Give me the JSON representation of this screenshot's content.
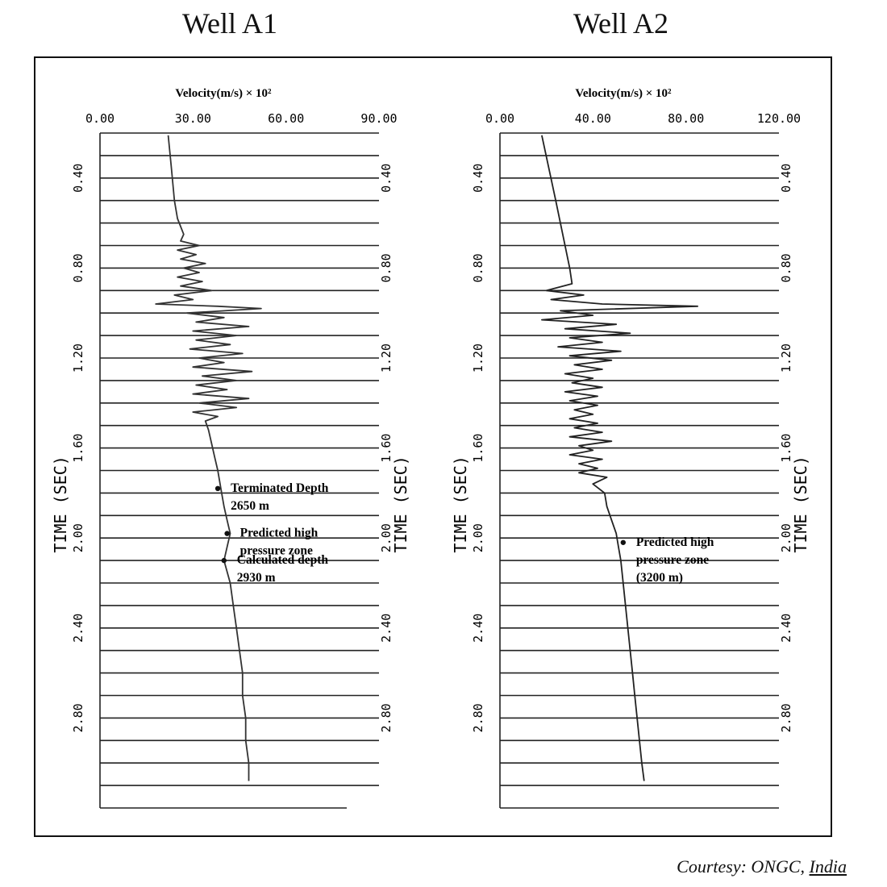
{
  "page": {
    "titles": [
      "Well A1",
      "Well A2"
    ],
    "courtesy_prefix": "Courtesy: ONGC, ",
    "courtesy_country": "India"
  },
  "chart_data": [
    {
      "type": "line",
      "panel": "Well A1",
      "title": "Well A1",
      "xlabel": "Velocity(m/s)  × 10²",
      "ylabel": "TIME (SEC)",
      "xlim": [
        0,
        90
      ],
      "ylim": [
        0.2,
        3.2
      ],
      "x_tick_labels": [
        "0.00",
        "30.00",
        "60.00",
        "90.00"
      ],
      "x_ticks": [
        0,
        30,
        60,
        90
      ],
      "y_tick_labels": [
        "0.40",
        "0.80",
        "1.20",
        "1.60",
        "2.00",
        "2.40",
        "2.80"
      ],
      "y_ticks": [
        0.4,
        0.8,
        1.2,
        1.6,
        2.0,
        2.4,
        2.8
      ],
      "gridlines_y": true,
      "series": [
        {
          "color": "#333333",
          "points": [
            [
              22,
              0.21
            ],
            [
              23,
              0.35
            ],
            [
              24,
              0.5
            ],
            [
              25,
              0.58
            ],
            [
              27,
              0.65
            ],
            [
              26,
              0.68
            ],
            [
              32,
              0.7
            ],
            [
              25,
              0.72
            ],
            [
              31,
              0.74
            ],
            [
              26,
              0.76
            ],
            [
              34,
              0.78
            ],
            [
              27,
              0.8
            ],
            [
              32,
              0.82
            ],
            [
              25,
              0.84
            ],
            [
              33,
              0.86
            ],
            [
              26,
              0.88
            ],
            [
              36,
              0.9
            ],
            [
              24,
              0.92
            ],
            [
              30,
              0.94
            ],
            [
              18,
              0.96
            ],
            [
              38,
              0.97
            ],
            [
              52,
              0.98
            ],
            [
              28,
              1.0
            ],
            [
              40,
              1.02
            ],
            [
              31,
              1.04
            ],
            [
              48,
              1.06
            ],
            [
              30,
              1.08
            ],
            [
              44,
              1.1
            ],
            [
              31,
              1.12
            ],
            [
              42,
              1.14
            ],
            [
              29,
              1.16
            ],
            [
              46,
              1.18
            ],
            [
              32,
              1.2
            ],
            [
              40,
              1.22
            ],
            [
              30,
              1.24
            ],
            [
              49,
              1.26
            ],
            [
              33,
              1.28
            ],
            [
              44,
              1.3
            ],
            [
              31,
              1.32
            ],
            [
              41,
              1.34
            ],
            [
              30,
              1.36
            ],
            [
              48,
              1.38
            ],
            [
              32,
              1.4
            ],
            [
              44,
              1.42
            ],
            [
              30,
              1.44
            ],
            [
              38,
              1.46
            ],
            [
              34,
              1.48
            ],
            [
              35,
              1.52
            ],
            [
              36,
              1.58
            ],
            [
              37,
              1.64
            ],
            [
              38,
              1.7
            ],
            [
              39,
              1.78
            ],
            [
              40,
              1.86
            ],
            [
              41,
              1.92
            ],
            [
              42,
              1.98
            ],
            [
              41,
              2.04
            ],
            [
              40,
              2.1
            ],
            [
              42,
              2.2
            ],
            [
              43,
              2.3
            ],
            [
              44,
              2.4
            ],
            [
              45,
              2.5
            ],
            [
              46,
              2.6
            ],
            [
              46,
              2.7
            ],
            [
              47,
              2.8
            ],
            [
              47,
              2.9
            ],
            [
              48,
              3.0
            ],
            [
              48,
              3.08
            ]
          ]
        }
      ],
      "annotations": [
        {
          "text": "Terminated Depth",
          "text2": "2650 m",
          "x": 38,
          "y": 1.78
        },
        {
          "text": "Predicted high",
          "text2": "pressure zone",
          "x": 41,
          "y": 1.98
        },
        {
          "text": "Calculated depth",
          "text2": "2930 m",
          "x": 40,
          "y": 2.1
        }
      ]
    },
    {
      "type": "line",
      "panel": "Well A2",
      "title": "Well A2",
      "xlabel": "Velocity(m/s)  × 10²",
      "ylabel": "TIME (SEC)",
      "xlim": [
        0,
        120
      ],
      "ylim": [
        0.2,
        3.2
      ],
      "x_tick_labels": [
        "0.00",
        "40.00",
        "80.00",
        "120.00"
      ],
      "x_ticks": [
        0,
        40,
        80,
        120
      ],
      "y_tick_labels": [
        "0.40",
        "0.80",
        "1.20",
        "1.60",
        "2.00",
        "2.40",
        "2.80"
      ],
      "y_ticks": [
        0.4,
        0.8,
        1.2,
        1.6,
        2.0,
        2.4,
        2.8
      ],
      "gridlines_y": true,
      "series": [
        {
          "color": "#222222",
          "points": [
            [
              18,
              0.21
            ],
            [
              24,
              0.5
            ],
            [
              30,
              0.8
            ],
            [
              31,
              0.87
            ],
            [
              20,
              0.9
            ],
            [
              36,
              0.92
            ],
            [
              22,
              0.94
            ],
            [
              44,
              0.96
            ],
            [
              85,
              0.97
            ],
            [
              26,
              0.99
            ],
            [
              40,
              1.01
            ],
            [
              18,
              1.03
            ],
            [
              50,
              1.05
            ],
            [
              28,
              1.07
            ],
            [
              56,
              1.09
            ],
            [
              30,
              1.11
            ],
            [
              44,
              1.13
            ],
            [
              25,
              1.15
            ],
            [
              52,
              1.17
            ],
            [
              30,
              1.19
            ],
            [
              48,
              1.21
            ],
            [
              32,
              1.23
            ],
            [
              44,
              1.25
            ],
            [
              28,
              1.27
            ],
            [
              40,
              1.29
            ],
            [
              31,
              1.31
            ],
            [
              44,
              1.33
            ],
            [
              28,
              1.35
            ],
            [
              42,
              1.37
            ],
            [
              30,
              1.39
            ],
            [
              42,
              1.41
            ],
            [
              32,
              1.43
            ],
            [
              40,
              1.45
            ],
            [
              30,
              1.47
            ],
            [
              42,
              1.49
            ],
            [
              32,
              1.51
            ],
            [
              44,
              1.53
            ],
            [
              30,
              1.55
            ],
            [
              48,
              1.57
            ],
            [
              34,
              1.59
            ],
            [
              40,
              1.61
            ],
            [
              30,
              1.63
            ],
            [
              44,
              1.65
            ],
            [
              34,
              1.67
            ],
            [
              42,
              1.69
            ],
            [
              34,
              1.71
            ],
            [
              46,
              1.73
            ],
            [
              40,
              1.76
            ],
            [
              45,
              1.8
            ],
            [
              46,
              1.86
            ],
            [
              48,
              1.92
            ],
            [
              50,
              1.98
            ],
            [
              51,
              2.04
            ],
            [
              52,
              2.1
            ],
            [
              53,
              2.2
            ],
            [
              54,
              2.3
            ],
            [
              55,
              2.4
            ],
            [
              56,
              2.5
            ],
            [
              57,
              2.6
            ],
            [
              58,
              2.7
            ],
            [
              59,
              2.8
            ],
            [
              60,
              2.9
            ],
            [
              61,
              3.0
            ],
            [
              62,
              3.08
            ]
          ]
        }
      ],
      "annotations": [
        {
          "text": "Predicted high",
          "text2": "pressure zone",
          "text3": "(3200 m)",
          "x": 53,
          "y": 2.02
        }
      ]
    }
  ]
}
